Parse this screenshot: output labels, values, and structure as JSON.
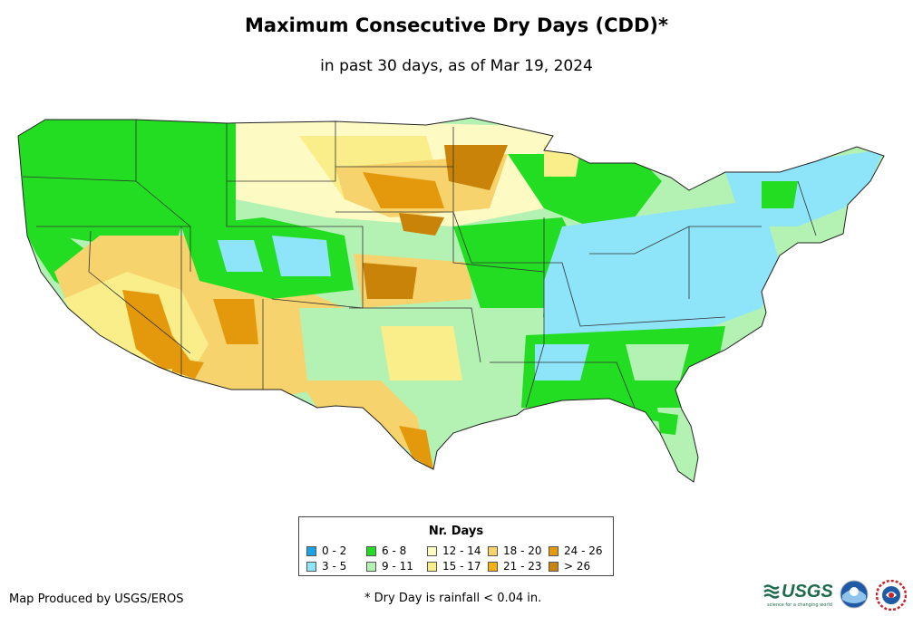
{
  "title": "Maximum Consecutive Dry Days (CDD)*",
  "subtitle": "in past 30 days, as of Mar 19, 2024",
  "legend": {
    "title": "Nr. Days",
    "items": [
      {
        "label": "0 - 2",
        "color": "#1aa3e8"
      },
      {
        "label": "3 - 5",
        "color": "#8ee4f9"
      },
      {
        "label": "6 - 8",
        "color": "#22dd22"
      },
      {
        "label": "9 - 11",
        "color": "#b4f2b4"
      },
      {
        "label": "12 - 14",
        "color": "#fdfac4"
      },
      {
        "label": "15 - 17",
        "color": "#f9ee8a"
      },
      {
        "label": "18 - 20",
        "color": "#f6d36c"
      },
      {
        "label": "21 - 23",
        "color": "#f3b20f"
      },
      {
        "label": "24 - 26",
        "color": "#e4990d"
      },
      {
        "label": "> 26",
        "color": "#c98308"
      }
    ]
  },
  "credit": "Map Produced by USGS/EROS",
  "footnote": "* Dry Day is rainfall < 0.04 in.",
  "logos": {
    "usgs": "USGS",
    "usgs_tagline": "science for a changing world"
  }
}
